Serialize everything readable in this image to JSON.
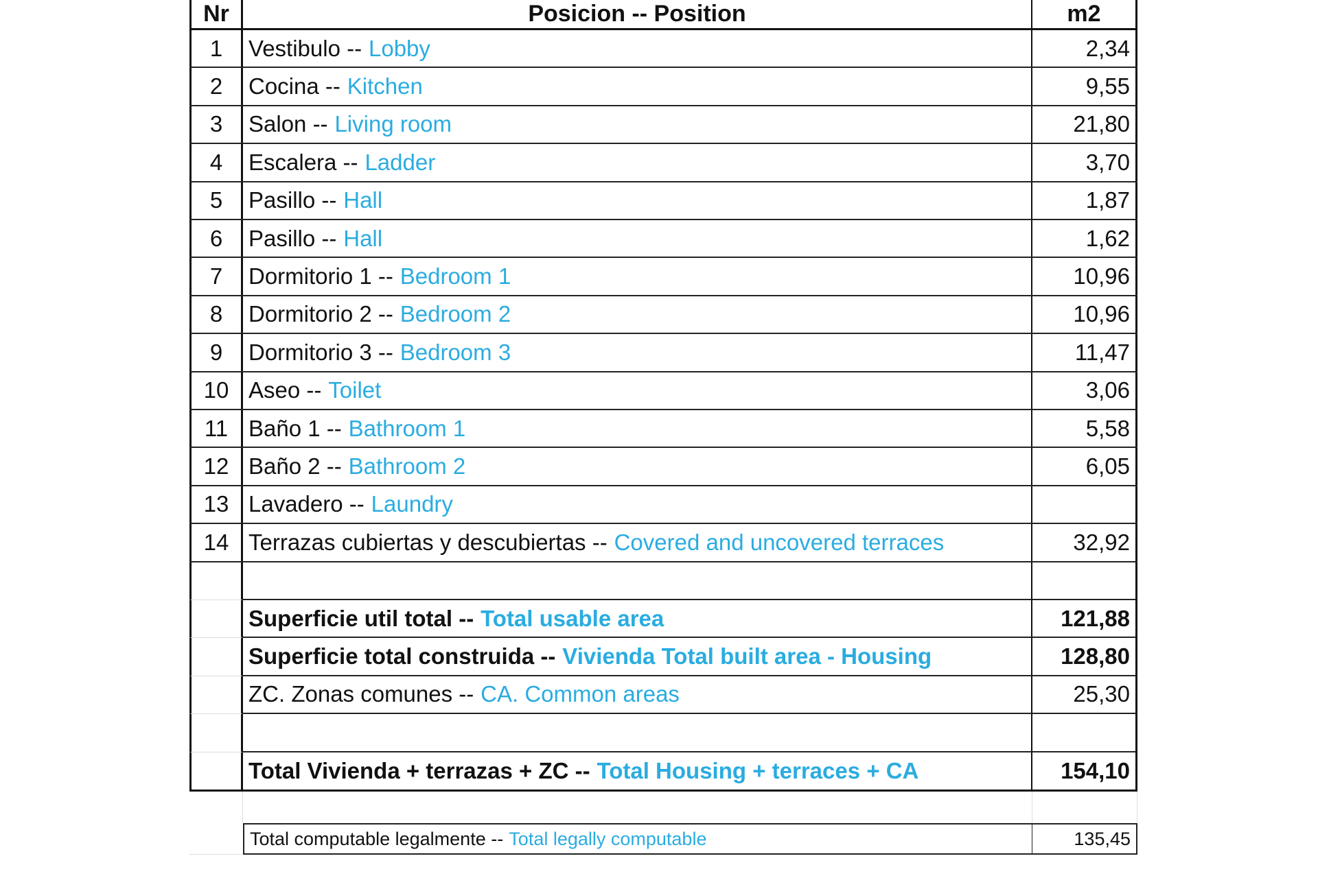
{
  "header": {
    "nr": "Nr",
    "position": "Posicion -- Position",
    "m2": "m2"
  },
  "rows": [
    {
      "nr": "1",
      "es": "Vestibulo --",
      "en": "Lobby",
      "m2": "2,34"
    },
    {
      "nr": "2",
      "es": "Cocina -- ",
      "en": "Kitchen",
      "m2": "9,55"
    },
    {
      "nr": "3",
      "es": "Salon --",
      "en": "Living room",
      "m2": "21,80"
    },
    {
      "nr": "4",
      "es": "Escalera --",
      "en": "Ladder",
      "m2": "3,70"
    },
    {
      "nr": "5",
      "es": "Pasillo --",
      "en": "Hall",
      "m2": "1,87"
    },
    {
      "nr": "6",
      "es": "Pasillo --",
      "en": "Hall",
      "m2": "1,62"
    },
    {
      "nr": "7",
      "es": "Dormitorio 1 --",
      "en": "Bedroom 1",
      "m2": "10,96"
    },
    {
      "nr": "8",
      "es": "Dormitorio 2 --",
      "en": "Bedroom 2",
      "m2": "10,96"
    },
    {
      "nr": "9",
      "es": "Dormitorio 3 --",
      "en": "Bedroom 3",
      "m2": "11,47"
    },
    {
      "nr": "10",
      "es": "Aseo --",
      "en": "Toilet",
      "m2": "3,06"
    },
    {
      "nr": "11",
      "es": "Baño 1 --",
      "en": "Bathroom 1",
      "m2": "5,58"
    },
    {
      "nr": "12",
      "es": "Baño 2 --",
      "en": "Bathroom 2",
      "m2": "6,05"
    },
    {
      "nr": "13",
      "es": "Lavadero --",
      "en": "Laundry",
      "m2": ""
    },
    {
      "nr": "14",
      "es": "Terrazas cubiertas y descubiertas --",
      "en": "Covered and uncovered terraces",
      "m2": "32,92"
    }
  ],
  "summary": {
    "usable": {
      "es": "Superficie util total --",
      "en": "Total usable area",
      "m2": "121,88"
    },
    "built": {
      "es": "Superficie total construida --",
      "en": "Vivienda Total built area - Housing",
      "m2": "128,80"
    },
    "common": {
      "es": "ZC. Zonas comunes  --",
      "en": "CA. Common areas",
      "m2": "25,30"
    },
    "total": {
      "es": "Total Vivienda + terrazas + ZC  --",
      "en": "Total Housing + terraces + CA",
      "m2": "154,10"
    },
    "legal": {
      "es": "Total computable legalmente --",
      "en": "Total legally computable",
      "m2": "135,45"
    }
  },
  "colors": {
    "english_text": "#2aace0",
    "spanish_text": "#111111"
  }
}
